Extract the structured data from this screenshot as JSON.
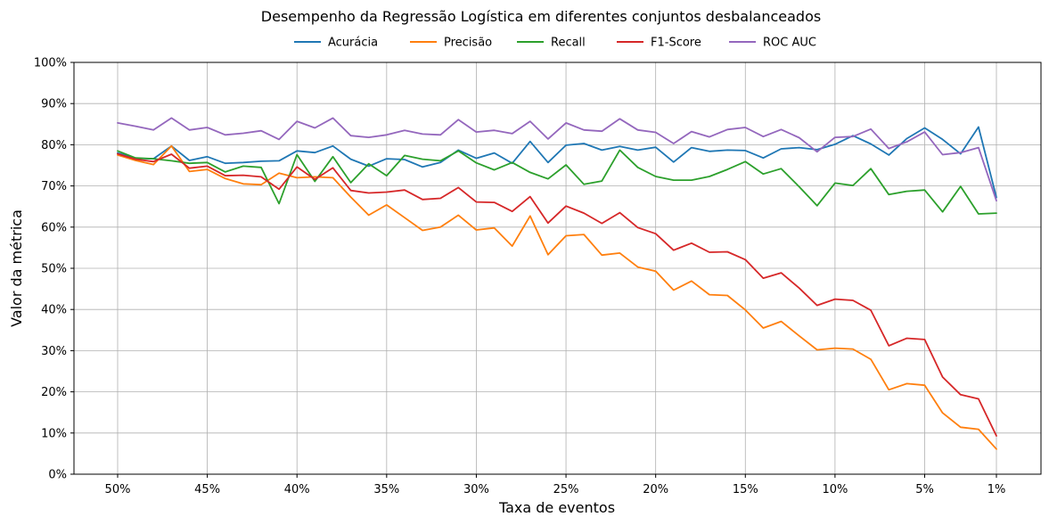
{
  "chart_data": {
    "type": "line",
    "title": "Desempenho da Regressão Logística em diferentes conjuntos desbalanceados",
    "xlabel": "Taxa de eventos",
    "ylabel": "Valor da métrica",
    "x_tick_labels": [
      "50%",
      "45%",
      "40%",
      "35%",
      "30%",
      "25%",
      "20%",
      "15%",
      "10%",
      "5%",
      "1%"
    ],
    "y_tick_labels": [
      "0%",
      "10%",
      "20%",
      "30%",
      "40%",
      "50%",
      "60%",
      "70%",
      "80%",
      "90%",
      "100%"
    ],
    "ylim": [
      0,
      1
    ],
    "grid": true,
    "legend_position": "top-center",
    "x": [
      50,
      49,
      48,
      47,
      46,
      45,
      44,
      43,
      42,
      41,
      40,
      39,
      38,
      37,
      36,
      35,
      34,
      33,
      32,
      31,
      30,
      29,
      28,
      27,
      26,
      25,
      24,
      23,
      22,
      21,
      20,
      19,
      18,
      17,
      16,
      15,
      14,
      13,
      12,
      11,
      10,
      9,
      8,
      7,
      6,
      5,
      4,
      3,
      2,
      1
    ],
    "series": [
      {
        "name": "Acurácia",
        "color": "#1f77b4",
        "values": [
          0.78,
          0.767,
          0.766,
          0.797,
          0.762,
          0.771,
          0.755,
          0.757,
          0.76,
          0.761,
          0.785,
          0.781,
          0.797,
          0.765,
          0.748,
          0.766,
          0.764,
          0.746,
          0.757,
          0.787,
          0.767,
          0.78,
          0.755,
          0.808,
          0.757,
          0.799,
          0.803,
          0.787,
          0.796,
          0.787,
          0.794,
          0.758,
          0.793,
          0.784,
          0.787,
          0.786,
          0.768,
          0.79,
          0.793,
          0.788,
          0.801,
          0.822,
          0.802,
          0.775,
          0.815,
          0.841,
          0.813,
          0.778,
          0.843,
          0.672
        ]
      },
      {
        "name": "Precisão",
        "color": "#ff7f0e",
        "values": [
          0.775,
          0.762,
          0.752,
          0.797,
          0.735,
          0.74,
          0.718,
          0.705,
          0.703,
          0.731,
          0.72,
          0.722,
          0.72,
          0.673,
          0.629,
          0.654,
          0.623,
          0.592,
          0.6,
          0.629,
          0.593,
          0.598,
          0.554,
          0.627,
          0.533,
          0.579,
          0.582,
          0.532,
          0.537,
          0.503,
          0.493,
          0.447,
          0.469,
          0.436,
          0.434,
          0.399,
          0.355,
          0.371,
          0.336,
          0.302,
          0.306,
          0.304,
          0.279,
          0.205,
          0.22,
          0.216,
          0.149,
          0.114,
          0.109,
          0.061
        ]
      },
      {
        "name": "Recall",
        "color": "#2ca02c",
        "values": [
          0.785,
          0.768,
          0.766,
          0.761,
          0.755,
          0.757,
          0.734,
          0.748,
          0.745,
          0.657,
          0.776,
          0.711,
          0.771,
          0.708,
          0.754,
          0.725,
          0.774,
          0.765,
          0.761,
          0.785,
          0.756,
          0.739,
          0.757,
          0.733,
          0.717,
          0.751,
          0.704,
          0.712,
          0.787,
          0.745,
          0.723,
          0.714,
          0.714,
          0.723,
          0.74,
          0.759,
          0.729,
          0.742,
          0.698,
          0.652,
          0.707,
          0.701,
          0.742,
          0.679,
          0.687,
          0.69,
          0.637,
          0.699,
          0.632,
          0.634
        ]
      },
      {
        "name": "F1-Score",
        "color": "#d62728",
        "values": [
          0.778,
          0.765,
          0.759,
          0.777,
          0.743,
          0.748,
          0.725,
          0.726,
          0.722,
          0.692,
          0.746,
          0.716,
          0.744,
          0.689,
          0.683,
          0.685,
          0.69,
          0.667,
          0.67,
          0.696,
          0.661,
          0.66,
          0.638,
          0.674,
          0.61,
          0.651,
          0.634,
          0.609,
          0.635,
          0.599,
          0.584,
          0.544,
          0.561,
          0.539,
          0.54,
          0.521,
          0.476,
          0.489,
          0.452,
          0.41,
          0.425,
          0.422,
          0.398,
          0.312,
          0.33,
          0.327,
          0.236,
          0.193,
          0.183,
          0.093
        ]
      },
      {
        "name": "ROC AUC",
        "color": "#9467bd",
        "values": [
          0.853,
          0.845,
          0.836,
          0.865,
          0.836,
          0.842,
          0.824,
          0.828,
          0.834,
          0.813,
          0.857,
          0.841,
          0.865,
          0.822,
          0.818,
          0.824,
          0.835,
          0.826,
          0.824,
          0.861,
          0.831,
          0.835,
          0.827,
          0.857,
          0.814,
          0.853,
          0.836,
          0.833,
          0.863,
          0.836,
          0.83,
          0.803,
          0.832,
          0.819,
          0.837,
          0.842,
          0.82,
          0.837,
          0.817,
          0.783,
          0.818,
          0.82,
          0.838,
          0.791,
          0.807,
          0.831,
          0.776,
          0.781,
          0.793,
          0.664
        ]
      }
    ]
  }
}
